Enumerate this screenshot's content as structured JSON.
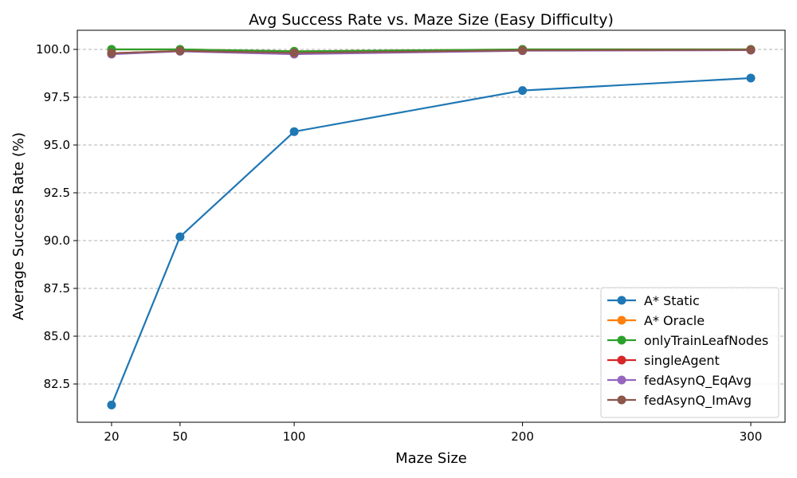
{
  "chart_data": {
    "type": "line",
    "title": "Avg Success Rate vs. Maze Size (Easy Difficulty)",
    "xlabel": "Maze Size",
    "ylabel": "Average Success Rate (%)",
    "x": [
      20,
      50,
      100,
      200,
      300
    ],
    "x_ticks": [
      20,
      50,
      100,
      200,
      300
    ],
    "xlim": [
      5,
      315
    ],
    "ylim": [
      80.5,
      101.0
    ],
    "y_ticks": [
      82.5,
      85.0,
      87.5,
      90.0,
      92.5,
      95.0,
      97.5,
      100.0
    ],
    "grid": "y-dashed",
    "legend_position": "lower-right",
    "series": [
      {
        "name": "A* Static",
        "color": "#1f77b4",
        "values": [
          81.4,
          90.2,
          95.7,
          97.85,
          98.5
        ]
      },
      {
        "name": "A* Oracle",
        "color": "#ff7f0e",
        "values": [
          100.0,
          100.0,
          99.9,
          100.0,
          100.0
        ]
      },
      {
        "name": "onlyTrainLeafNodes",
        "color": "#2ca02c",
        "values": [
          100.0,
          100.0,
          99.9,
          100.0,
          100.0
        ]
      },
      {
        "name": "singleAgent",
        "color": "#d62728",
        "values": [
          99.8,
          99.92,
          99.8,
          99.95,
          99.97
        ]
      },
      {
        "name": "fedAsynQ_EqAvg",
        "color": "#9467bd",
        "values": [
          99.75,
          99.9,
          99.75,
          99.93,
          99.96
        ]
      },
      {
        "name": "fedAsynQ_ImAvg",
        "color": "#8c564b",
        "values": [
          99.8,
          99.92,
          99.82,
          99.95,
          99.98
        ]
      }
    ]
  }
}
